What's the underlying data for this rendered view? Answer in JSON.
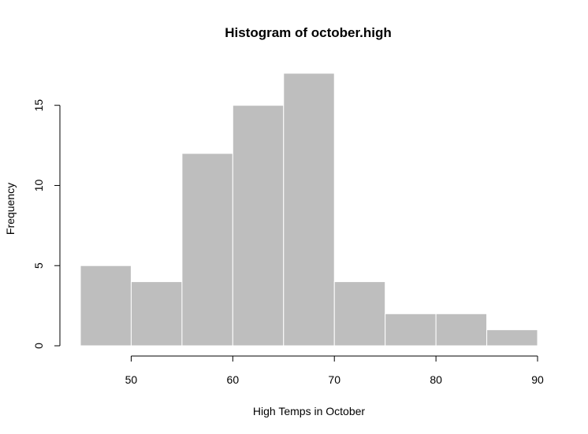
{
  "chart_data": {
    "type": "bar",
    "title": "Histogram of october.high",
    "xlabel": "High Temps in October",
    "ylabel": "Frequency",
    "bin_edges": [
      45,
      50,
      55,
      60,
      65,
      70,
      75,
      80,
      85,
      90
    ],
    "values": [
      5,
      4,
      12,
      15,
      17,
      4,
      2,
      2,
      1
    ],
    "xlim": [
      45,
      90
    ],
    "ylim": [
      0,
      17
    ],
    "xticks": [
      50,
      60,
      70,
      80,
      90
    ],
    "yticks": [
      0,
      5,
      10,
      15
    ],
    "bar_color": "#bebebe",
    "bar_border_color": "#ffffff",
    "grid": false,
    "legend": false
  }
}
